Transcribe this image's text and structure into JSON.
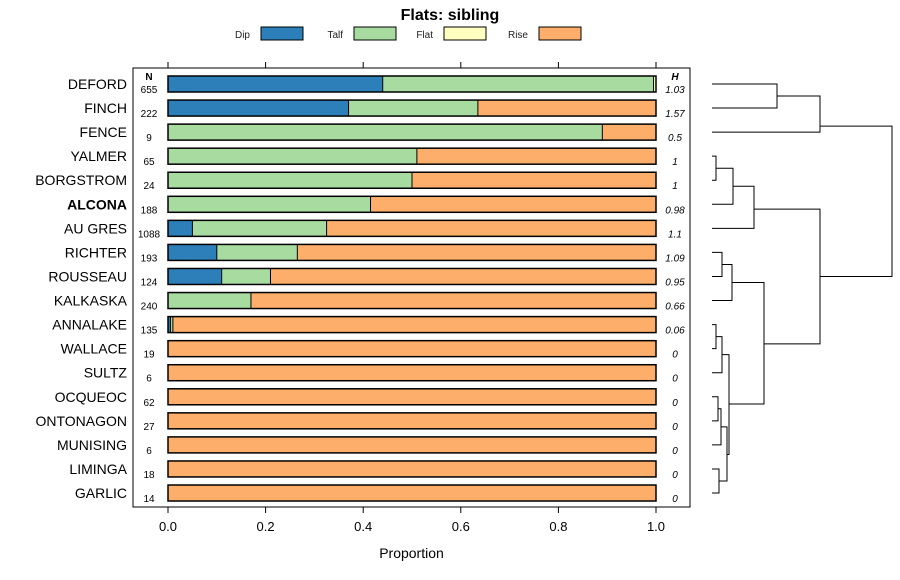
{
  "chart_data": {
    "type": "bar",
    "stacked": true,
    "orientation": "horizontal",
    "title": "Flats: sibling",
    "xlabel": "Proportion",
    "xlim": [
      0,
      1
    ],
    "xticks": [
      "0.0",
      "0.2",
      "0.4",
      "0.6",
      "0.8",
      "1.0"
    ],
    "n_header": "N",
    "h_header": "H",
    "highlight_category": "ALCONA",
    "legend": [
      {
        "name": "Dip",
        "color": "#2c7fb8"
      },
      {
        "name": "Talf",
        "color": "#a8dba0"
      },
      {
        "name": "Flat",
        "color": "#ffffbf"
      },
      {
        "name": "Rise",
        "color": "#fdae6b"
      }
    ],
    "categories": [
      "DEFORD",
      "FINCH",
      "FENCE",
      "YALMER",
      "BORGSTROM",
      "ALCONA",
      "AU GRES",
      "RICHTER",
      "ROUSSEAU",
      "KALKASKA",
      "ANNALAKE",
      "WALLACE",
      "SULTZ",
      "OCQUEOC",
      "ONTONAGON",
      "MUNISING",
      "LIMINGA",
      "GARLIC"
    ],
    "n": [
      "655",
      "222",
      "9",
      "65",
      "24",
      "188",
      "1088",
      "193",
      "124",
      "240",
      "135",
      "19",
      "6",
      "62",
      "27",
      "6",
      "18",
      "14"
    ],
    "h": [
      "1.03",
      "1.57",
      "0.5",
      "1",
      "1",
      "0.98",
      "1.1",
      "1.09",
      "0.95",
      "0.66",
      "0.06",
      "0",
      "0",
      "0",
      "0",
      "0",
      "0",
      "0"
    ],
    "series": [
      {
        "name": "Dip",
        "values": [
          0.44,
          0.37,
          0,
          0,
          0,
          0,
          0.05,
          0.1,
          0.11,
          0,
          0.005,
          0,
          0,
          0,
          0,
          0,
          0,
          0
        ]
      },
      {
        "name": "Talf",
        "values": [
          0.555,
          0.265,
          0.89,
          0.51,
          0.5,
          0.415,
          0.275,
          0.165,
          0.1,
          0.17,
          0.005,
          0,
          0,
          0,
          0,
          0,
          0,
          0
        ]
      },
      {
        "name": "Flat",
        "values": [
          0.005,
          0,
          0,
          0,
          0,
          0,
          0,
          0,
          0,
          0,
          0,
          0,
          0,
          0,
          0,
          0,
          0,
          0
        ]
      },
      {
        "name": "Rise",
        "values": [
          0,
          0.365,
          0.11,
          0.49,
          0.5,
          0.585,
          0.675,
          0.735,
          0.79,
          0.83,
          0.99,
          1,
          1,
          1,
          1,
          1,
          1,
          1
        ]
      }
    ]
  }
}
